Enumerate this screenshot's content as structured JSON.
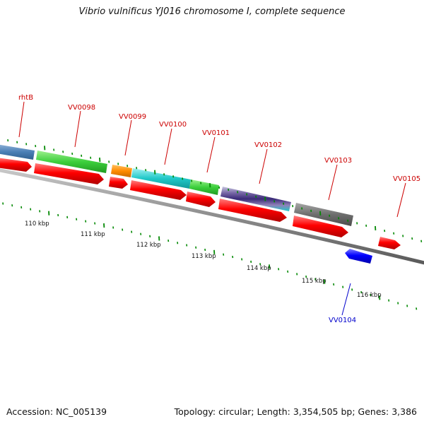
{
  "title": "Vibrio vulnificus YJ016 chromosome I, complete sequence",
  "footer": {
    "accession": "Accession: NC_005139",
    "summary": "Topology: circular; Length: 3,354,505 bp; Genes: 3,386"
  },
  "colors": {
    "label": "#cc0000",
    "label_reverse": "#0000cc",
    "backbone": "#8c8c8c",
    "tick": "#008800",
    "cds_forward": "#ff0000",
    "cds_reverse": "#0000ff"
  },
  "axis_labels": [
    "110 kbp",
    "111 kbp",
    "112 kbp",
    "113 kbp",
    "114 kbp",
    "115 kbp",
    "116 kbp"
  ],
  "gene_labels": [
    "rhtB",
    "VV0098",
    "VV0099",
    "VV0100",
    "VV0101",
    "VV0102",
    "VV0103",
    "VV0104",
    "VV0105"
  ],
  "feature_colors": [
    "steelblue",
    "green",
    "orange",
    "cyan",
    "green",
    "purple",
    "gray"
  ]
}
